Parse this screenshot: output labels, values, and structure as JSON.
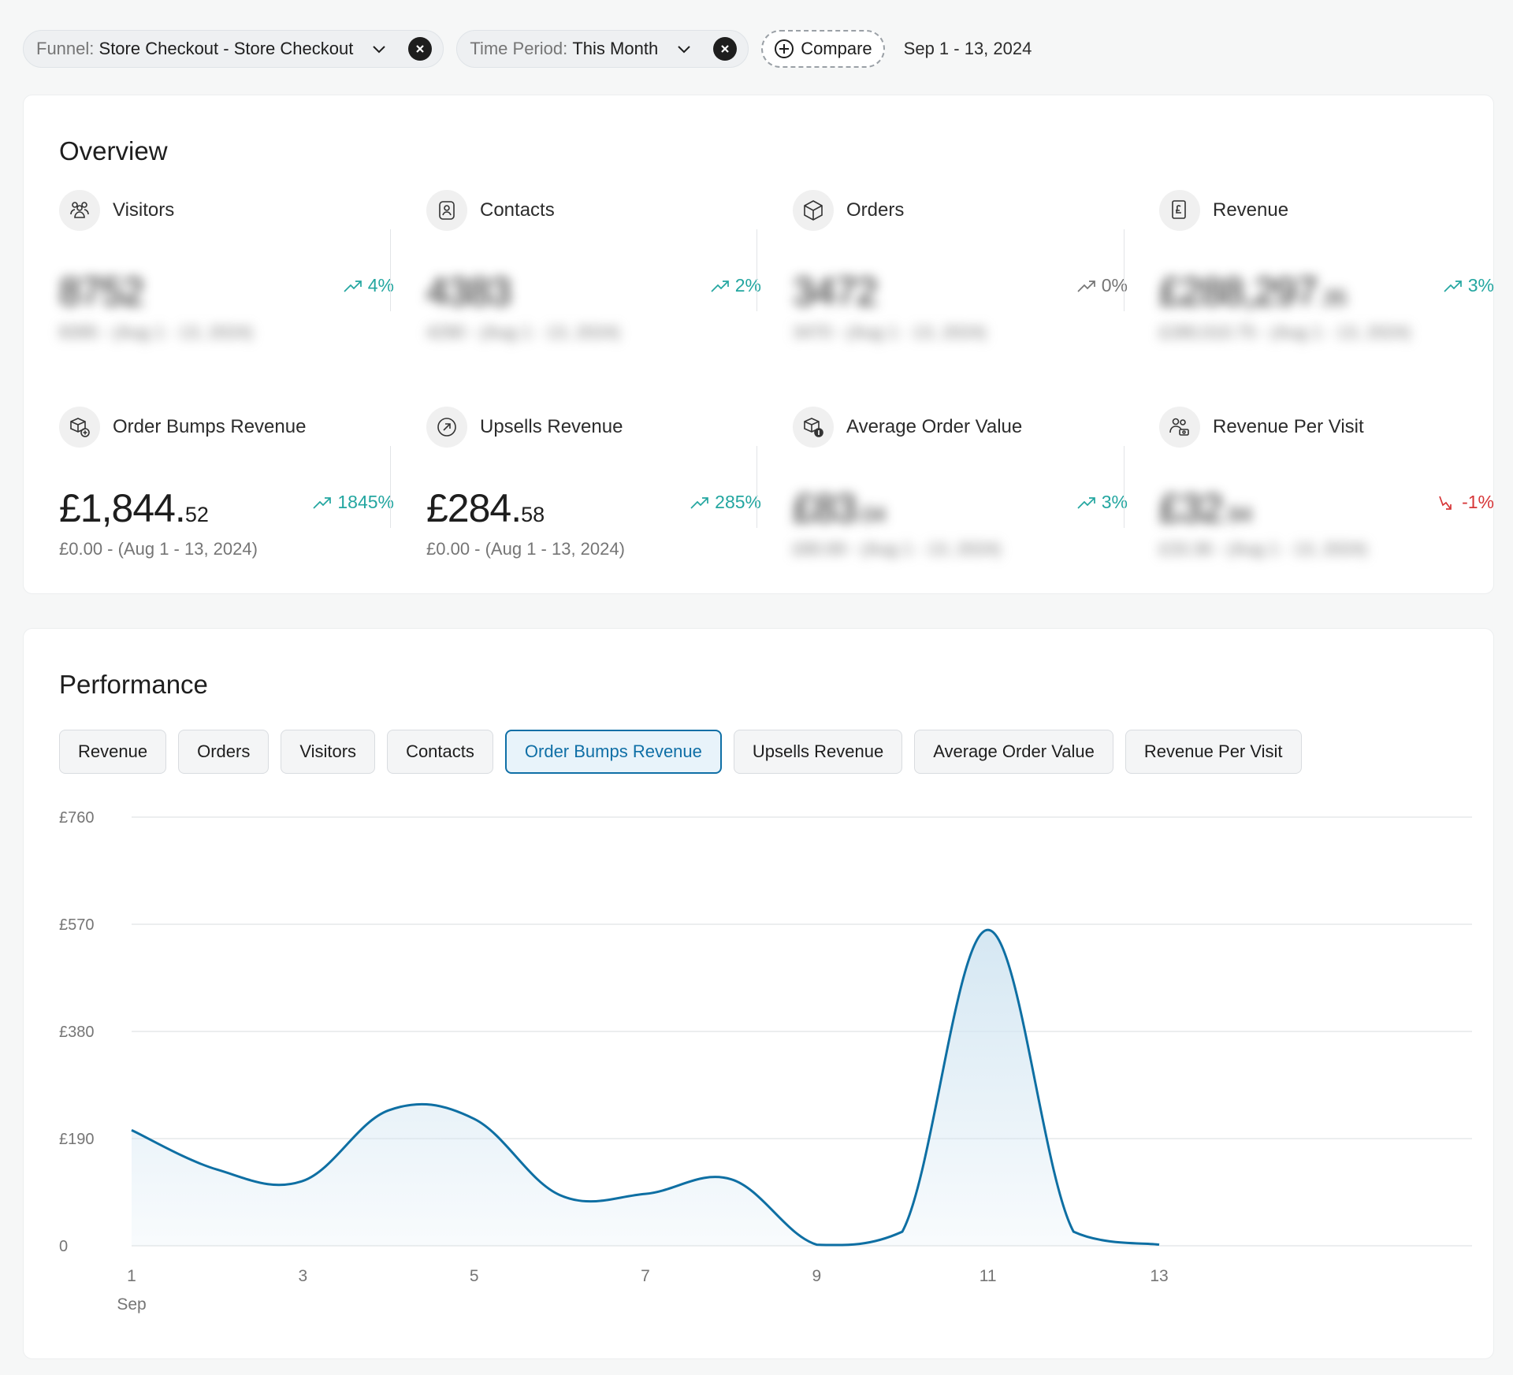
{
  "filters": {
    "funnel": {
      "key": "Funnel:",
      "value": "Store Checkout - Store Checkout"
    },
    "period": {
      "key": "Time Period:",
      "value": "This Month"
    },
    "compare_label": "Compare",
    "date_range": "Sep 1 - 13, 2024"
  },
  "overview": {
    "title": "Overview",
    "metrics": [
      {
        "label": "Visitors",
        "icon": "visitors-icon",
        "value_main": "8752",
        "value_dec": "",
        "sub": "8395 - (Aug 1 - 13, 2024)",
        "trend": "4%",
        "dir": "up",
        "blurred": true
      },
      {
        "label": "Contacts",
        "icon": "contacts-icon",
        "value_main": "4383",
        "value_dec": "",
        "sub": "4290 - (Aug 1 - 13, 2024)",
        "trend": "2%",
        "dir": "up",
        "blurred": true
      },
      {
        "label": "Orders",
        "icon": "orders-icon",
        "value_main": "3472",
        "value_dec": "",
        "sub": "3470 - (Aug 1 - 13, 2024)",
        "trend": "0%",
        "dir": "flat",
        "blurred": true
      },
      {
        "label": "Revenue",
        "icon": "revenue-icon",
        "value_main": "£288,297",
        "value_dec": ".35",
        "sub": "£280,010.75 - (Aug 1 - 13, 2024)",
        "trend": "3%",
        "dir": "up",
        "blurred": true
      },
      {
        "label": "Order Bumps Revenue",
        "icon": "order-bumps-icon",
        "value_main": "£1,844.",
        "value_dec": "52",
        "sub": "£0.00 - (Aug 1 - 13, 2024)",
        "trend": "1845%",
        "dir": "up",
        "blurred": false
      },
      {
        "label": "Upsells Revenue",
        "icon": "upsells-icon",
        "value_main": "£284.",
        "value_dec": "58",
        "sub": "£0.00 - (Aug 1 - 13, 2024)",
        "trend": "285%",
        "dir": "up",
        "blurred": false
      },
      {
        "label": "Average Order Value",
        "icon": "average-order-value-icon",
        "value_main": "£83",
        "value_dec": ".04",
        "sub": "£80.69 - (Aug 1 - 13, 2024)",
        "trend": "3%",
        "dir": "up",
        "blurred": true
      },
      {
        "label": "Revenue Per Visit",
        "icon": "revenue-per-visit-icon",
        "value_main": "£32",
        "value_dec": ".94",
        "sub": "£33.36 - (Aug 1 - 13, 2024)",
        "trend": "-1%",
        "dir": "down",
        "blurred": true
      }
    ]
  },
  "performance": {
    "title": "Performance",
    "tabs": [
      "Revenue",
      "Orders",
      "Visitors",
      "Contacts",
      "Order Bumps Revenue",
      "Upsells Revenue",
      "Average Order Value",
      "Revenue Per Visit"
    ],
    "active_tab": "Order Bumps Revenue"
  },
  "chart_data": {
    "type": "area",
    "x": [
      1,
      2,
      3,
      4,
      5,
      6,
      7,
      8,
      9,
      10,
      11,
      12,
      13
    ],
    "values": [
      205,
      135,
      115,
      240,
      225,
      90,
      92,
      118,
      2,
      25,
      560,
      25,
      2
    ],
    "x_ticks": [
      "1",
      "3",
      "5",
      "7",
      "9",
      "11",
      "13"
    ],
    "x_sublabel": "Sep",
    "y_ticks": [
      "0",
      "£190",
      "£380",
      "£570",
      "£760"
    ],
    "ylim": [
      0,
      760
    ],
    "grid": true,
    "line_color": "#0e6fa3",
    "fill_color": "#d3e6f2"
  },
  "colors": {
    "accent": "#0f6fa6",
    "trend_up": "#23a6a0",
    "trend_down": "#d63638"
  }
}
